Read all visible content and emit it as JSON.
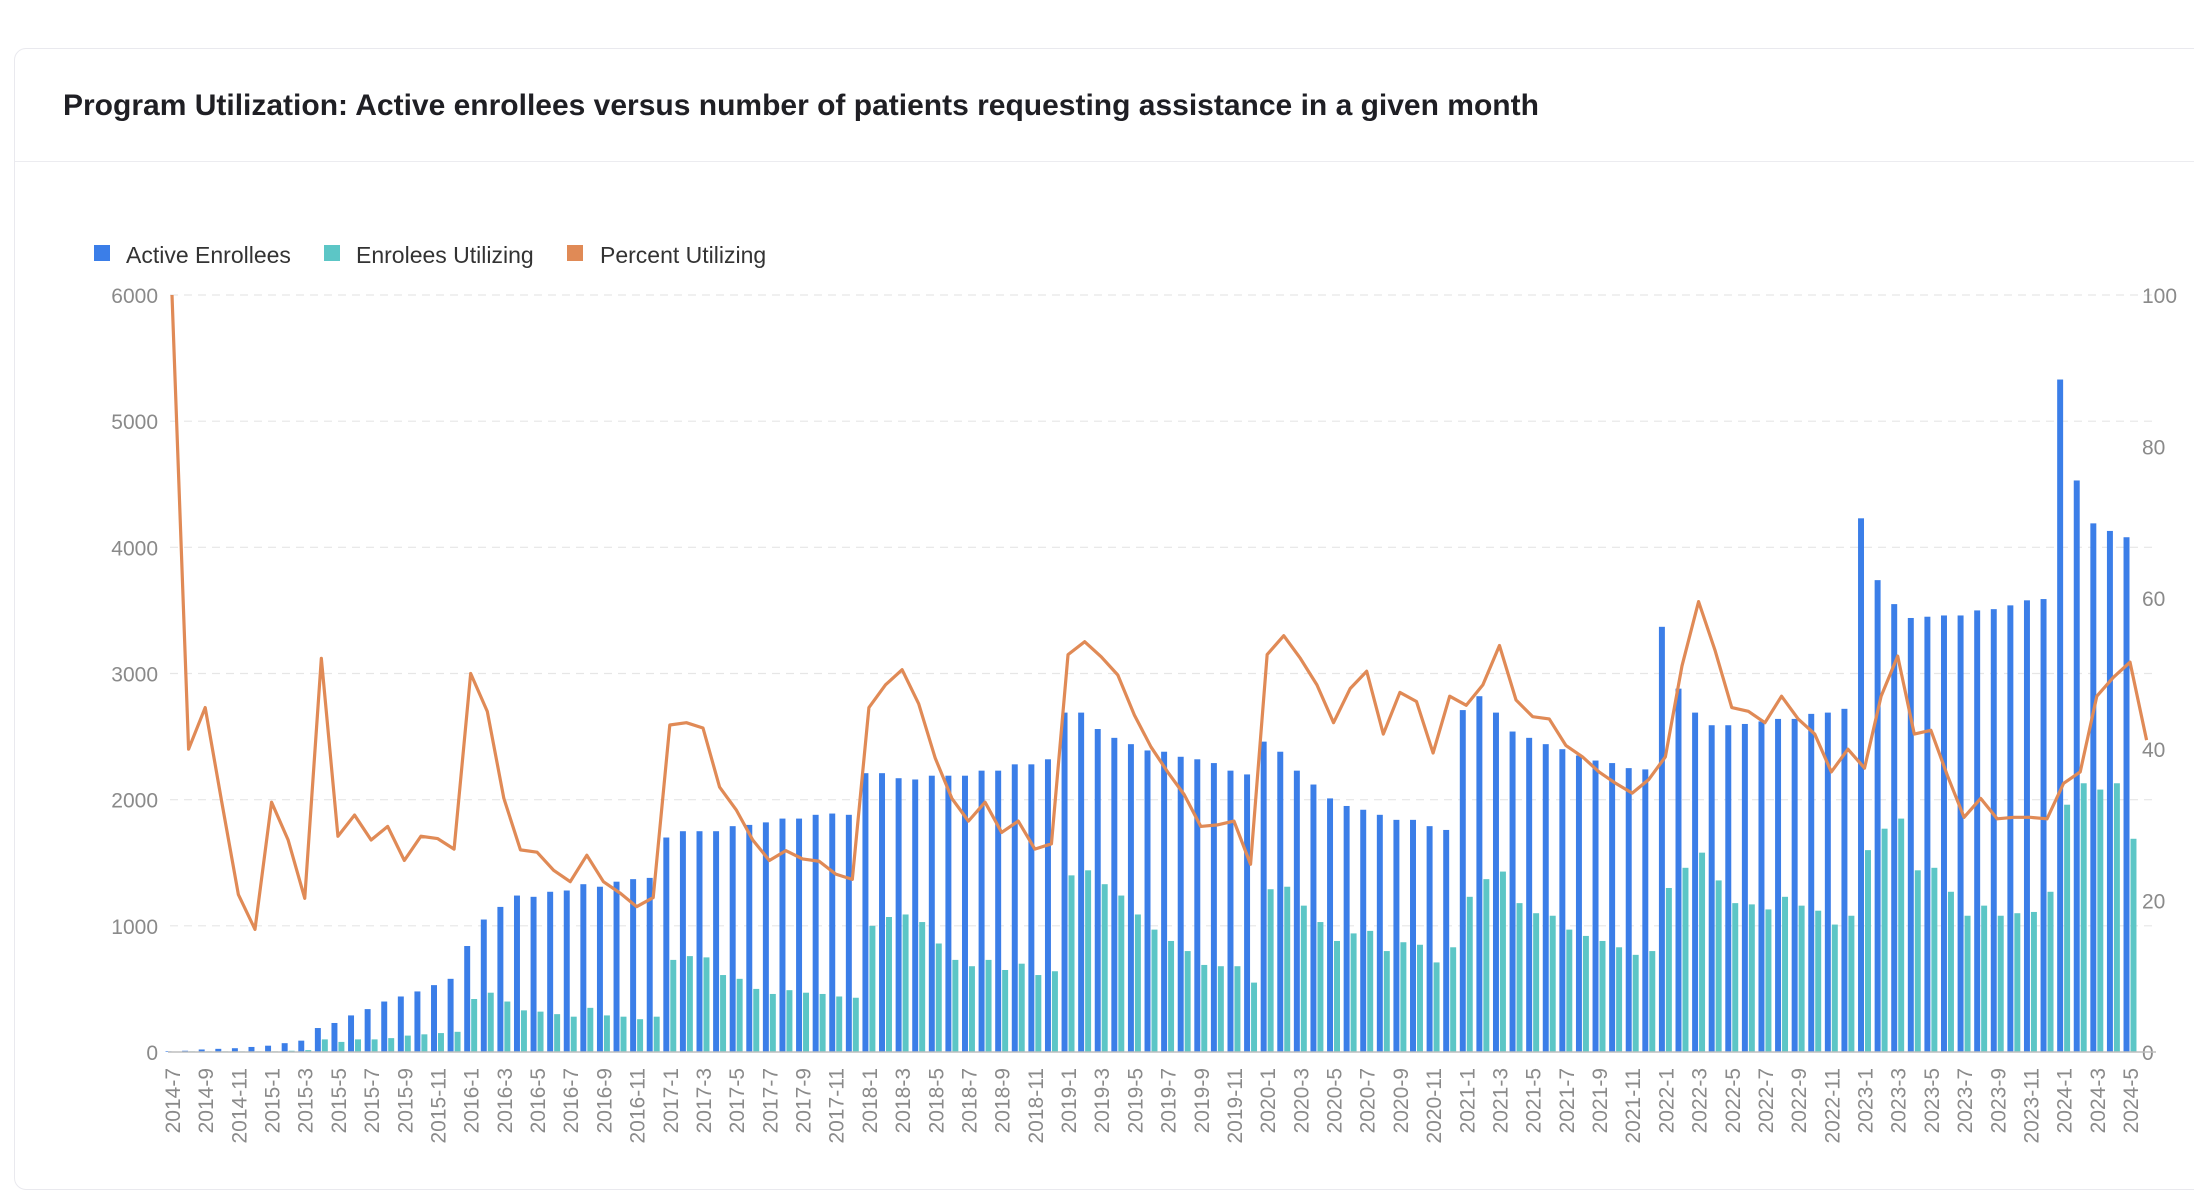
{
  "card": {
    "title": "Program Utilization: Active enrollees versus number of patients requesting assistance in a given month"
  },
  "chart_data": {
    "type": "bar",
    "title": "Program Utilization: Active enrollees versus number of patients requesting assistance in a given month",
    "x_start": "2014-7",
    "x_label_every": 2,
    "y_left": {
      "min": 0,
      "max": 6000,
      "ticks": [
        0,
        1000,
        2000,
        3000,
        4000,
        5000,
        6000
      ]
    },
    "y_right": {
      "min": 0,
      "max": 100,
      "ticks": [
        0,
        20,
        40,
        60,
        80,
        100
      ]
    },
    "grid": true,
    "legend_position": "top-left",
    "colors": {
      "active": "#3b7ee8",
      "utilizing": "#5cc6c6",
      "percent": "#e08a56"
    },
    "series": [
      {
        "name": "Active Enrollees",
        "type": "bar",
        "axis": "left",
        "values": [
          5,
          10,
          20,
          25,
          30,
          40,
          50,
          70,
          90,
          190,
          230,
          290,
          340,
          400,
          440,
          480,
          530,
          580,
          840,
          1050,
          1150,
          1240,
          1230,
          1270,
          1280,
          1330,
          1310,
          1350,
          1370,
          1380,
          1700,
          1750,
          1750,
          1750,
          1790,
          1800,
          1820,
          1850,
          1850,
          1880,
          1890,
          1880,
          2210,
          2210,
          2170,
          2160,
          2190,
          2190,
          2190,
          2230,
          2230,
          2280,
          2280,
          2320,
          2690,
          2690,
          2560,
          2490,
          2440,
          2390,
          2380,
          2340,
          2320,
          2290,
          2230,
          2200,
          2460,
          2380,
          2230,
          2120,
          2010,
          1950,
          1920,
          1880,
          1840,
          1840,
          1790,
          1760,
          2710,
          2820,
          2690,
          2540,
          2490,
          2440,
          2400,
          2350,
          2310,
          2290,
          2250,
          2240,
          3370,
          2880,
          2690,
          2590,
          2590,
          2600,
          2620,
          2640,
          2640,
          2680,
          2690,
          2720,
          4230,
          3740,
          3550,
          3440,
          3450,
          3460,
          3460,
          3500,
          3510,
          3540,
          3580,
          3590,
          5330,
          4530,
          4190,
          4130,
          4080
        ]
      },
      {
        "name": "Enrolees Utilizing",
        "type": "bar",
        "axis": "left",
        "values": [
          2,
          5,
          5,
          5,
          5,
          5,
          5,
          10,
          15,
          100,
          80,
          100,
          100,
          110,
          130,
          140,
          150,
          160,
          420,
          470,
          400,
          330,
          320,
          300,
          280,
          350,
          290,
          280,
          260,
          280,
          730,
          760,
          750,
          610,
          580,
          500,
          460,
          490,
          470,
          460,
          440,
          430,
          1000,
          1070,
          1090,
          1030,
          860,
          730,
          680,
          730,
          650,
          700,
          610,
          640,
          1400,
          1440,
          1330,
          1240,
          1090,
          970,
          880,
          800,
          690,
          680,
          680,
          550,
          1290,
          1310,
          1160,
          1030,
          880,
          940,
          960,
          800,
          870,
          850,
          710,
          830,
          1230,
          1370,
          1430,
          1180,
          1100,
          1080,
          970,
          920,
          880,
          830,
          770,
          800,
          1300,
          1460,
          1580,
          1360,
          1180,
          1170,
          1130,
          1230,
          1160,
          1120,
          1010,
          1080,
          1600,
          1770,
          1850,
          1440,
          1460,
          1270,
          1080,
          1160,
          1080,
          1100,
          1110,
          1270,
          1960,
          2130,
          2080,
          2130,
          1690
        ]
      },
      {
        "name": "Percent Utilizing",
        "type": "line",
        "axis": "right",
        "values": [
          100,
          40,
          45.5,
          33,
          20.8,
          16.2,
          33,
          28,
          20.3,
          52,
          28.5,
          31.3,
          28,
          29.8,
          25.3,
          28.5,
          28.2,
          26.8,
          50,
          45,
          33.5,
          26.7,
          26.4,
          24,
          22.5,
          26,
          22.5,
          21,
          19.2,
          20.4,
          43.2,
          43.5,
          42.8,
          35,
          32,
          28,
          25.3,
          26.6,
          25.5,
          25.2,
          23.5,
          22.8,
          45.5,
          48.5,
          50.5,
          46,
          38.8,
          33.5,
          30.5,
          33,
          29,
          30.5,
          26.8,
          27.5,
          52.5,
          54.2,
          52.2,
          49.8,
          44.5,
          40.3,
          37,
          34,
          29.8,
          30,
          30.5,
          24.8,
          52.5,
          55,
          52,
          48.5,
          43.5,
          48,
          50.3,
          42,
          47.5,
          46.3,
          39.5,
          47,
          45.8,
          48.5,
          53.7,
          46.5,
          44.3,
          44,
          40.5,
          39,
          37,
          35.5,
          34.2,
          36,
          39,
          51,
          59.5,
          53,
          45.5,
          45,
          43.5,
          47,
          44,
          42,
          37,
          40,
          37.5,
          47,
          52.3,
          42,
          42.5,
          36.5,
          31,
          33.5,
          30.8,
          31,
          31,
          30.8,
          35.5,
          37,
          47,
          49.5,
          51.5,
          41.2
        ]
      }
    ]
  }
}
